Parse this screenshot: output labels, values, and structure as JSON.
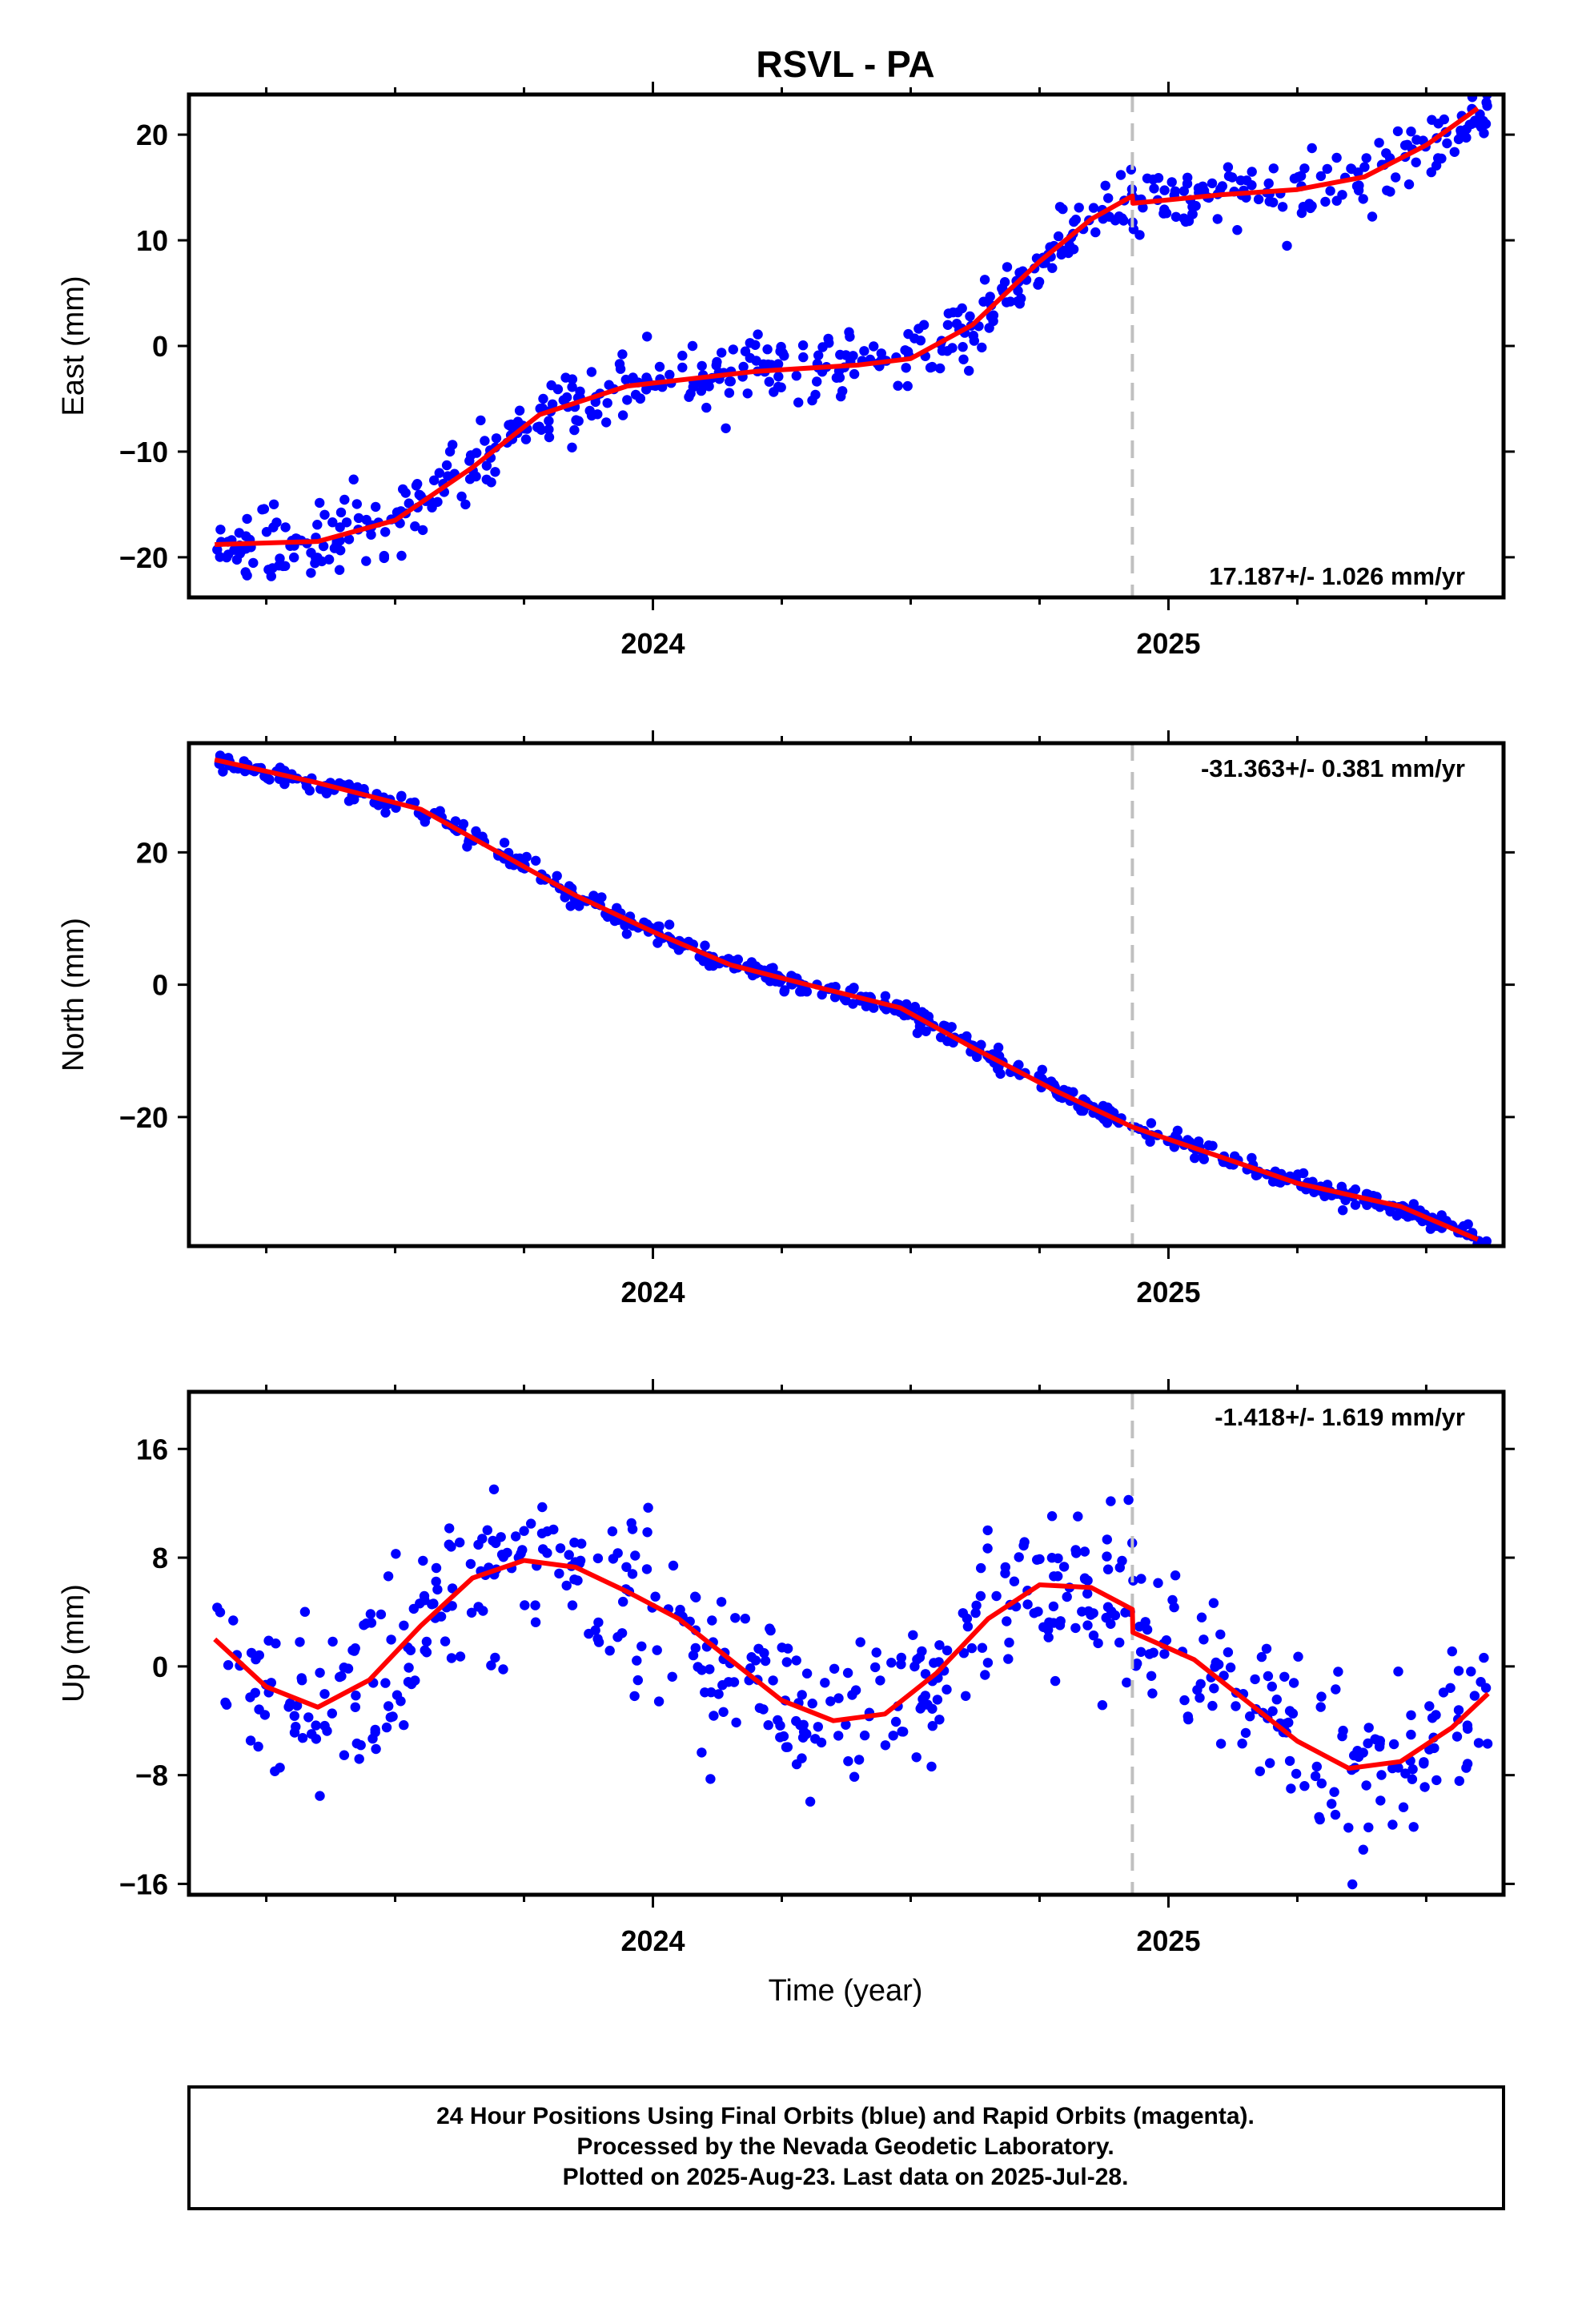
{
  "title": "RSVL - PA",
  "xlabel": "Time (year)",
  "footer": [
    "24 Hour Positions Using Final Orbits (blue) and Rapid Orbits (magenta).",
    "Processed by the Nevada Geodetic Laboratory.",
    "Plotted on 2025-Aug-23. Last data on 2025-Jul-28."
  ],
  "colors": {
    "data": "#0000ff",
    "model": "#ff0000",
    "break": "#c0c0c0",
    "frame": "#000000"
  },
  "chart_data": [
    {
      "type": "scatter",
      "component": "east",
      "ylabel": "East (mm)",
      "rate_label": "17.187+/- 1.026 mm/yr",
      "xlim": [
        2023.1,
        2025.65
      ],
      "ylim": [
        -23.8,
        23.8
      ],
      "yticks": [
        -20,
        -10,
        0,
        10,
        20
      ],
      "xticks": [
        2024,
        2025
      ],
      "break_epoch": 2024.93,
      "model": [
        [
          2023.15,
          -18.8
        ],
        [
          2023.35,
          -18.5
        ],
        [
          2023.5,
          -16.5
        ],
        [
          2023.65,
          -11.5
        ],
        [
          2023.78,
          -6.5
        ],
        [
          2023.95,
          -3.8
        ],
        [
          2024.2,
          -2.4
        ],
        [
          2024.4,
          -1.8
        ],
        [
          2024.5,
          -1.2
        ],
        [
          2024.62,
          2.0
        ],
        [
          2024.75,
          8.0
        ],
        [
          2024.85,
          12.0
        ],
        [
          2024.93,
          14.2
        ],
        [
          2024.931,
          13.5
        ],
        [
          2025.1,
          14.3
        ],
        [
          2025.25,
          14.8
        ],
        [
          2025.38,
          16.0
        ],
        [
          2025.5,
          19.0
        ],
        [
          2025.6,
          22.5
        ]
      ],
      "noise": 1.5,
      "n_points": 560,
      "x_range": [
        2023.15,
        2025.62
      ]
    },
    {
      "type": "scatter",
      "component": "north",
      "ylabel": "North (mm)",
      "rate_label": "-31.363+/- 0.381 mm/yr",
      "xlim": [
        2023.1,
        2025.65
      ],
      "ylim": [
        -39.5,
        36.5
      ],
      "yticks": [
        -20,
        0,
        20
      ],
      "xticks": [
        2024,
        2025
      ],
      "break_epoch": 2024.93,
      "model": [
        [
          2023.15,
          34.0
        ],
        [
          2023.35,
          30.5
        ],
        [
          2023.55,
          26.5
        ],
        [
          2023.7,
          20.0
        ],
        [
          2023.85,
          13.5
        ],
        [
          2024.0,
          8.0
        ],
        [
          2024.15,
          3.0
        ],
        [
          2024.3,
          0.0
        ],
        [
          2024.48,
          -3.5
        ],
        [
          2024.62,
          -9.5
        ],
        [
          2024.78,
          -16.0
        ],
        [
          2024.93,
          -21.5
        ],
        [
          2025.1,
          -26.0
        ],
        [
          2025.25,
          -30.0
        ],
        [
          2025.45,
          -33.5
        ],
        [
          2025.6,
          -38.5
        ]
      ],
      "noise": 0.8,
      "n_points": 560,
      "x_range": [
        2023.15,
        2025.62
      ]
    },
    {
      "type": "scatter",
      "component": "up",
      "ylabel": "Up (mm)",
      "rate_label": "-1.418+/- 1.619 mm/yr",
      "xlim": [
        2023.1,
        2025.65
      ],
      "ylim": [
        -16.8,
        20.2
      ],
      "yticks": [
        -16,
        -8,
        0,
        8,
        16
      ],
      "xticks": [
        2024,
        2025
      ],
      "break_epoch": 2024.93,
      "model": [
        [
          2023.15,
          2.0
        ],
        [
          2023.25,
          -1.5
        ],
        [
          2023.35,
          -3.0
        ],
        [
          2023.45,
          -1.0
        ],
        [
          2023.55,
          3.0
        ],
        [
          2023.65,
          6.5
        ],
        [
          2023.75,
          7.8
        ],
        [
          2023.85,
          7.3
        ],
        [
          2023.95,
          5.5
        ],
        [
          2024.05,
          3.5
        ],
        [
          2024.15,
          0.5
        ],
        [
          2024.25,
          -2.5
        ],
        [
          2024.35,
          -4.0
        ],
        [
          2024.45,
          -3.5
        ],
        [
          2024.55,
          -0.5
        ],
        [
          2024.65,
          3.5
        ],
        [
          2024.75,
          6.0
        ],
        [
          2024.85,
          5.8
        ],
        [
          2024.93,
          4.2
        ],
        [
          2024.931,
          2.5
        ],
        [
          2025.05,
          0.5
        ],
        [
          2025.15,
          -2.5
        ],
        [
          2025.25,
          -5.5
        ],
        [
          2025.35,
          -7.5
        ],
        [
          2025.45,
          -7.0
        ],
        [
          2025.55,
          -4.5
        ],
        [
          2025.62,
          -2.0
        ]
      ],
      "noise": 3.0,
      "n_points": 560,
      "x_range": [
        2023.15,
        2025.62
      ]
    }
  ]
}
